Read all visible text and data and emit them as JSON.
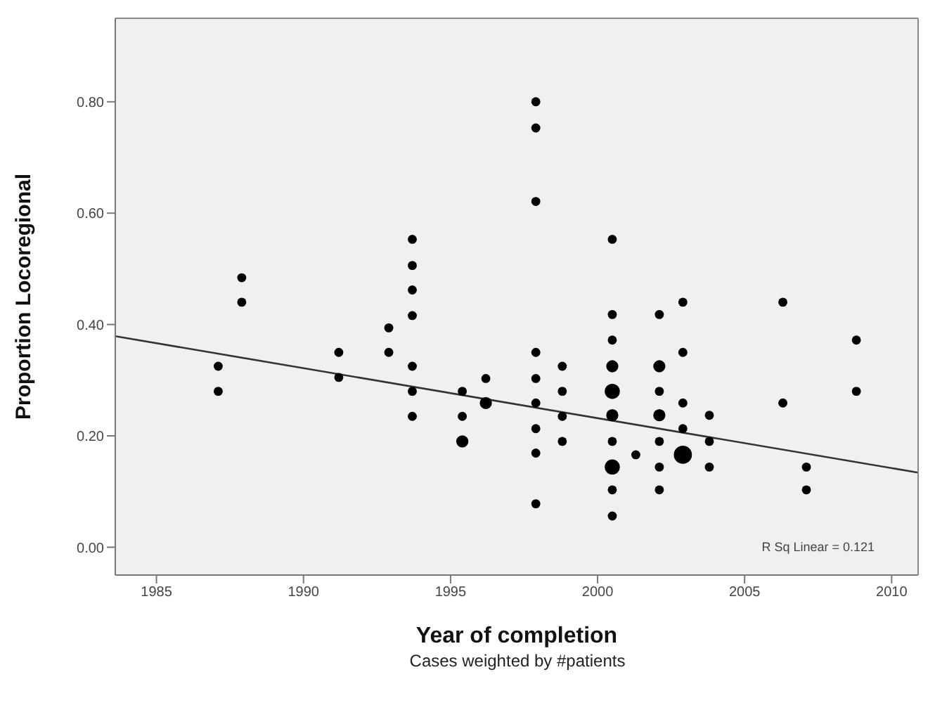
{
  "chart_data": {
    "type": "bubble",
    "xlabel": "Year of completion",
    "ylabel": "Proportion Locoregional",
    "annotations": [
      "R Sq Linear = 0.121",
      "Cases weighted by #patients"
    ],
    "xlim": [
      1983.6,
      2010.9
    ],
    "xticks": [
      1985,
      1990,
      1995,
      2000,
      2005,
      2010
    ],
    "ylim": [
      -0.05,
      0.95
    ],
    "yticks": [
      {
        "value": 0,
        "label": "0.00"
      },
      {
        "value": 0.2,
        "label": "0.20"
      },
      {
        "value": 0.4,
        "label": "0.40"
      },
      {
        "value": 0.6,
        "label": "0.60"
      },
      {
        "value": 0.8,
        "label": "0.80"
      }
    ],
    "grid": false,
    "series": [
      {
        "color": "#000000",
        "x": [
          1987.1,
          1987.1,
          1987.9,
          1987.9,
          1991.2,
          1991.2,
          1992.9,
          1992.9,
          1993.7,
          1993.7,
          1993.7,
          1993.7,
          1993.7,
          1993.7,
          1993.7,
          1995.4,
          1995.4,
          1995.4,
          1996.2,
          1996.2,
          1997.9,
          1997.9,
          1997.9,
          1997.9,
          1997.9,
          1997.9,
          1997.9,
          1997.9,
          1997.9,
          1998.8,
          1998.8,
          1998.8,
          1998.8,
          2000.5,
          2000.5,
          2000.5,
          2000.5,
          2000.5,
          2000.5,
          2000.5,
          2000.5,
          2000.5,
          2000.5,
          2001.3,
          2002.1,
          2002.1,
          2002.1,
          2002.1,
          2002.1,
          2002.1,
          2002.1,
          2002.9,
          2002.9,
          2002.9,
          2002.9,
          2002.9,
          2003.8,
          2003.8,
          2003.8,
          2006.3,
          2006.3,
          2007.1,
          2007.1,
          2008.8,
          2008.8
        ],
        "values": [
          0.325,
          0.28,
          0.484,
          0.44,
          0.35,
          0.305,
          0.394,
          0.35,
          0.553,
          0.506,
          0.462,
          0.416,
          0.325,
          0.28,
          0.235,
          0.28,
          0.235,
          0.19,
          0.303,
          0.259,
          0.8,
          0.753,
          0.621,
          0.35,
          0.303,
          0.259,
          0.213,
          0.169,
          0.078,
          0.325,
          0.28,
          0.235,
          0.19,
          0.553,
          0.418,
          0.372,
          0.325,
          0.28,
          0.237,
          0.19,
          0.144,
          0.103,
          0.056,
          0.166,
          0.418,
          0.325,
          0.28,
          0.237,
          0.19,
          0.144,
          0.103,
          0.44,
          0.35,
          0.259,
          0.213,
          0.166,
          0.237,
          0.19,
          0.144,
          0.44,
          0.259,
          0.144,
          0.103,
          0.372,
          0.28
        ],
        "sizes": [
          0.25,
          0.25,
          0.25,
          0.25,
          0.25,
          0.25,
          0.25,
          0.25,
          0.25,
          0.25,
          0.25,
          0.25,
          0.25,
          0.25,
          0.25,
          0.25,
          0.25,
          0.45,
          0.25,
          0.45,
          0.25,
          0.25,
          0.25,
          0.25,
          0.25,
          0.25,
          0.25,
          0.25,
          0.25,
          0.25,
          0.25,
          0.25,
          0.25,
          0.25,
          0.25,
          0.25,
          0.45,
          0.7,
          0.45,
          0.25,
          0.7,
          0.25,
          0.25,
          0.25,
          0.25,
          0.45,
          0.25,
          0.45,
          0.25,
          0.25,
          0.25,
          0.25,
          0.25,
          0.25,
          0.25,
          1,
          0.25,
          0.25,
          0.25,
          0.25,
          0.25,
          0.25,
          0.25,
          0.25,
          0.25
        ]
      },
      {
        "type": "line",
        "color": "#333333",
        "x": [
          1983.6,
          2010.9
        ],
        "values": [
          0.379,
          0.134
        ]
      }
    ]
  }
}
